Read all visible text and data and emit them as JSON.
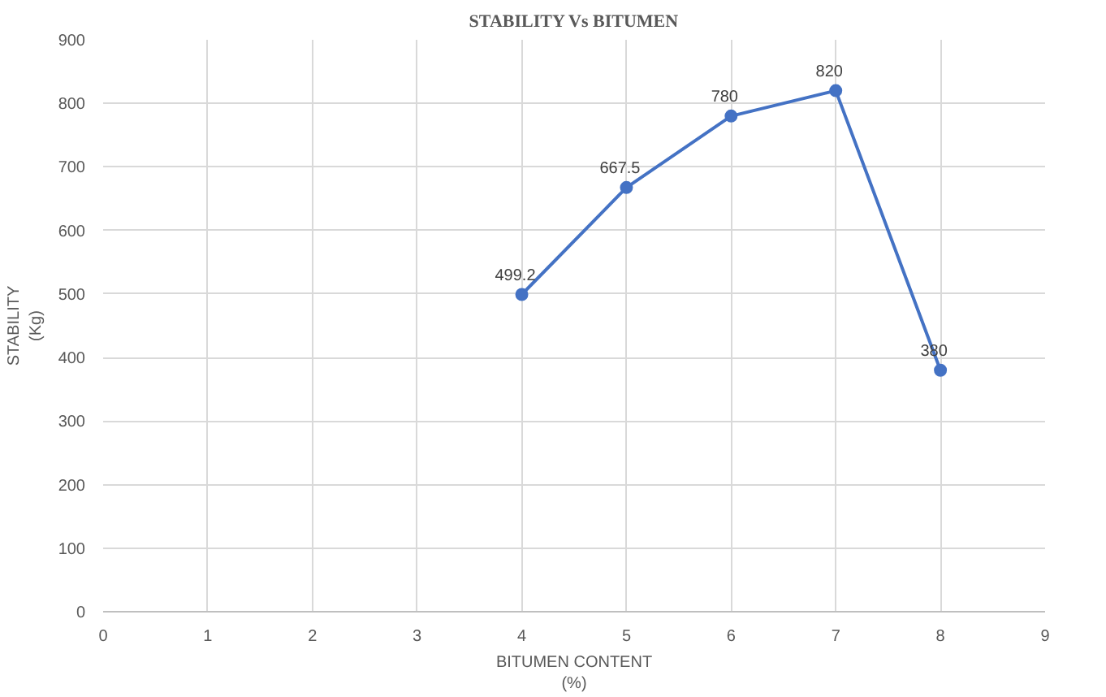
{
  "chart_data": {
    "type": "line",
    "title": "STABILITY Vs BITUMEN",
    "xlabel": "BITUMEN CONTENT\n(%)",
    "ylabel": "STABILITY\n(Kg)",
    "x": [
      4,
      5,
      6,
      7,
      8
    ],
    "series": [
      {
        "color": "#4472c4",
        "values": [
          499.2,
          667.5,
          780,
          820,
          380
        ]
      }
    ],
    "xlim": [
      0,
      9
    ],
    "xticks": [
      0,
      1,
      2,
      3,
      4,
      5,
      6,
      7,
      8,
      9
    ],
    "ylim": [
      0,
      900
    ],
    "yticks": [
      0,
      100,
      200,
      300,
      400,
      500,
      600,
      700,
      800,
      900
    ],
    "grid": true,
    "marker": "circle",
    "line_style": "solid",
    "data_labels": true
  }
}
